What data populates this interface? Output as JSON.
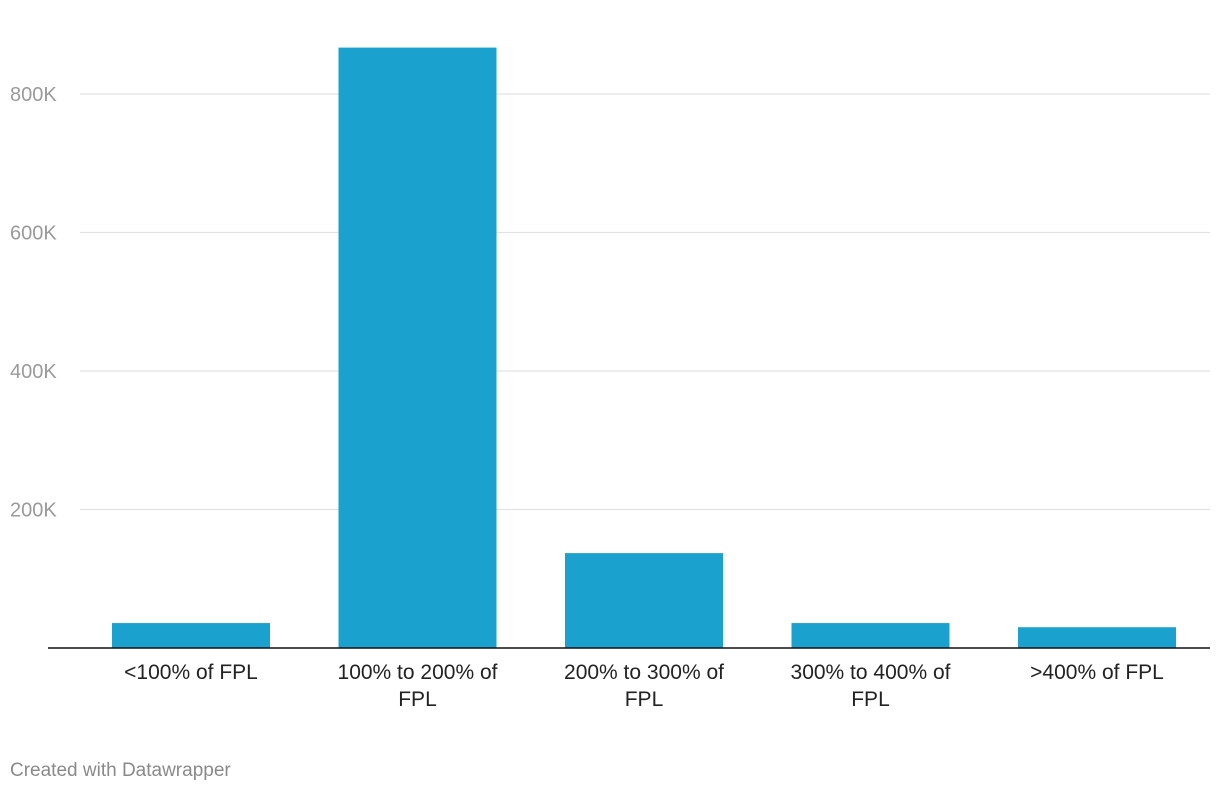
{
  "chart_data": {
    "type": "bar",
    "categories": [
      "<100% of FPL",
      "100% to 200% of FPL",
      "200% to 300% of FPL",
      "300% to 400% of FPL",
      ">400% of FPL"
    ],
    "category_lines": [
      [
        "<100% of FPL"
      ],
      [
        "100% to 200% of",
        "FPL"
      ],
      [
        "200% to 300% of",
        "FPL"
      ],
      [
        "300% to 400% of",
        "FPL"
      ],
      [
        ">400% of FPL"
      ]
    ],
    "values": [
      36000,
      867000,
      137000,
      36000,
      30000
    ],
    "yticks": [
      200000,
      400000,
      600000,
      800000
    ],
    "ytick_labels": [
      "200K",
      "400K",
      "600K",
      "800K"
    ],
    "ylim": [
      0,
      870000
    ],
    "grid": true,
    "bar_color": "#1aa1cd",
    "title": "",
    "xlabel": "",
    "ylabel": ""
  },
  "footer": {
    "credit": "Created with Datawrapper"
  }
}
